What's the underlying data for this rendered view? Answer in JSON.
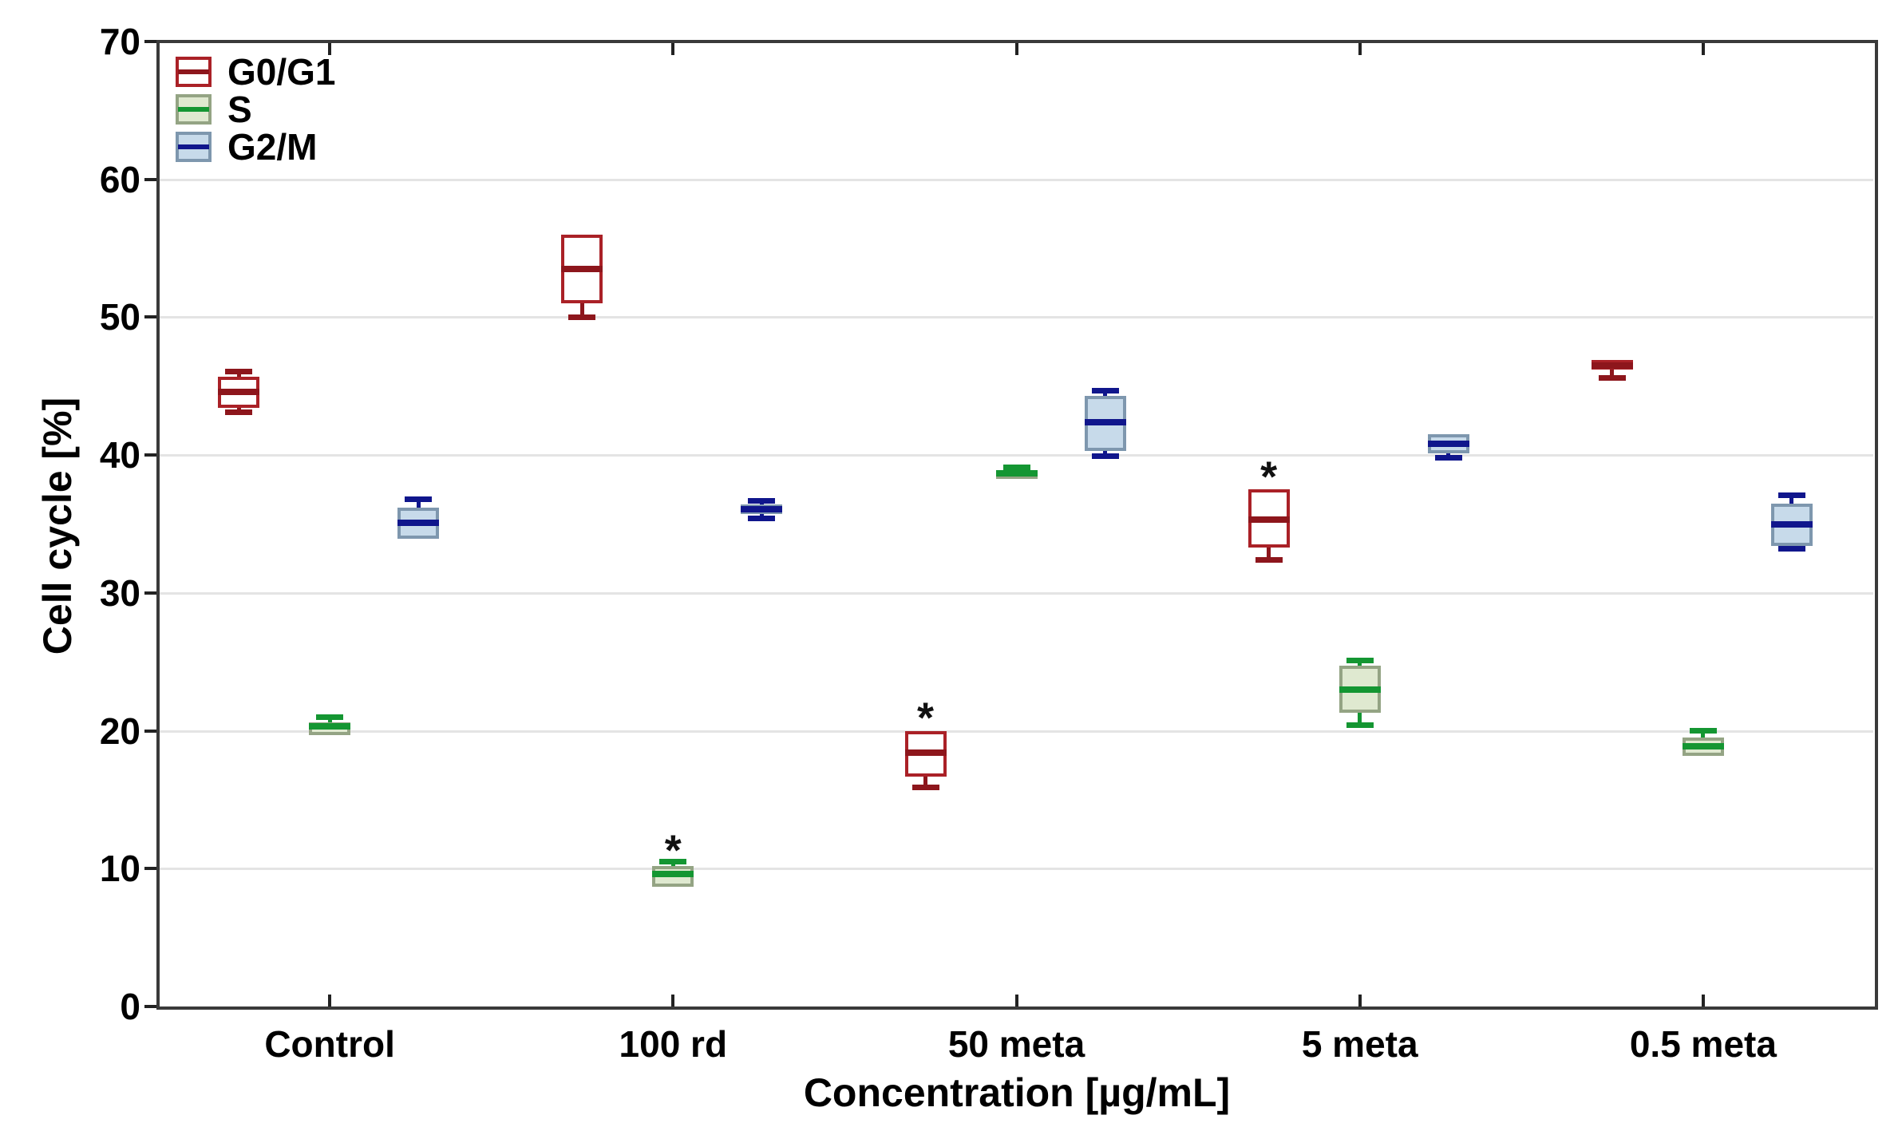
{
  "chart_data": {
    "type": "boxplot",
    "title": "",
    "xlabel": "Concentration [µg/mL]",
    "ylabel": "Cell cycle [%]",
    "ylim": [
      0,
      70
    ],
    "yticks": [
      0,
      10,
      20,
      30,
      40,
      50,
      60,
      70
    ],
    "grid": "horizontal",
    "legend_position": "top-left-inside",
    "significance_marker": "*",
    "categories": [
      "Control",
      "100 rd",
      "50 meta",
      "5 meta",
      "0.5 meta"
    ],
    "colors": {
      "background": "#ffffff",
      "frame": "#3a3a3a",
      "gridline": "#e4e4e4",
      "text": "#000000",
      "star": "#111111"
    },
    "series": [
      {
        "name": "G0/G1",
        "style": {
          "border": "#aa2127",
          "fill": "#ffffff",
          "line": "#8d161c"
        },
        "boxes": [
          {
            "min": 43.2,
            "q1": 43.4,
            "med": 44.6,
            "q3": 45.7,
            "max": 46.0,
            "star": false
          },
          {
            "min": 50.1,
            "q1": 51.0,
            "med": 53.5,
            "q3": 56.0,
            "max": 56.0,
            "star": false
          },
          {
            "min": 16.0,
            "q1": 16.7,
            "med": 18.4,
            "q3": 20.0,
            "max": 20.0,
            "star": true
          },
          {
            "min": 32.5,
            "q1": 33.3,
            "med": 35.3,
            "q3": 37.5,
            "max": 37.5,
            "star": true
          },
          {
            "min": 45.7,
            "q1": 46.2,
            "med": 46.5,
            "q3": 46.9,
            "max": 46.9,
            "star": false
          }
        ]
      },
      {
        "name": "S",
        "style": {
          "border": "#94a484",
          "fill": "#dfe9d0",
          "line": "#149632"
        },
        "boxes": [
          {
            "min": 19.7,
            "q1": 19.7,
            "med": 20.3,
            "q3": 20.6,
            "max": 20.9,
            "star": false
          },
          {
            "min": 8.7,
            "q1": 8.7,
            "med": 9.6,
            "q3": 10.2,
            "max": 10.4,
            "star": true
          },
          {
            "min": 38.3,
            "q1": 38.3,
            "med": 38.7,
            "q3": 38.9,
            "max": 39.0,
            "star": false
          },
          {
            "min": 20.5,
            "q1": 21.3,
            "med": 23.0,
            "q3": 24.7,
            "max": 25.0,
            "star": false
          },
          {
            "min": 18.2,
            "q1": 18.2,
            "med": 18.9,
            "q3": 19.5,
            "max": 19.9,
            "star": false
          }
        ]
      },
      {
        "name": "G2/M",
        "style": {
          "border": "#7e97ae",
          "fill": "#c7daea",
          "line": "#10168c"
        },
        "boxes": [
          {
            "min": 33.9,
            "q1": 33.9,
            "med": 35.1,
            "q3": 36.2,
            "max": 36.7,
            "star": false
          },
          {
            "min": 35.5,
            "q1": 35.7,
            "med": 36.1,
            "q3": 36.4,
            "max": 36.6,
            "star": false
          },
          {
            "min": 40.0,
            "q1": 40.3,
            "med": 42.4,
            "q3": 44.3,
            "max": 44.6,
            "star": false
          },
          {
            "min": 39.9,
            "q1": 40.1,
            "med": 40.8,
            "q3": 41.5,
            "max": 41.5,
            "star": false
          },
          {
            "min": 33.3,
            "q1": 33.4,
            "med": 35.0,
            "q3": 36.5,
            "max": 37.0,
            "star": false
          }
        ]
      }
    ]
  }
}
